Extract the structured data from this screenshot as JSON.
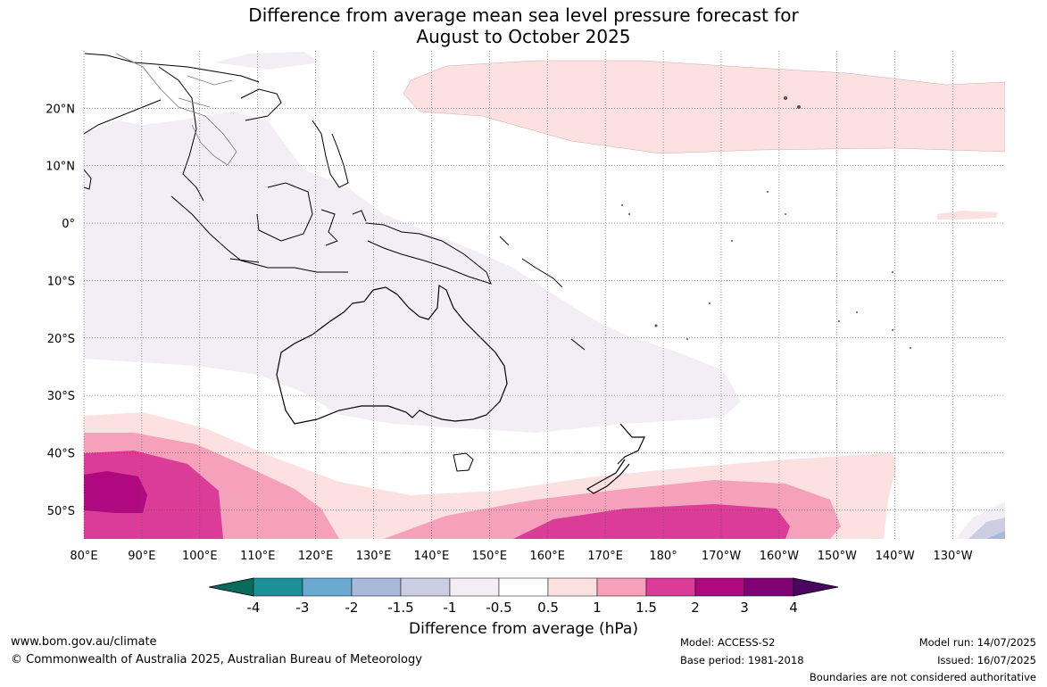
{
  "title_line1": "Difference from average mean sea level pressure forecast for",
  "title_line2": "August to October 2025",
  "lat_labels": [
    "20°N",
    "10°N",
    "0°",
    "10°S",
    "20°S",
    "30°S",
    "40°S",
    "50°S"
  ],
  "lat_values": [
    20,
    10,
    0,
    -10,
    -20,
    -30,
    -40,
    -50
  ],
  "lon_labels": [
    "80°E",
    "90°E",
    "100°E",
    "110°E",
    "120°E",
    "130°E",
    "140°E",
    "150°E",
    "160°E",
    "170°E",
    "180°",
    "170°W",
    "160°W",
    "150°W",
    "140°W",
    "130°W"
  ],
  "lon_values": [
    80,
    90,
    100,
    110,
    120,
    130,
    140,
    150,
    160,
    170,
    180,
    190,
    200,
    210,
    220,
    230
  ],
  "map_extent": {
    "lon_min": 80,
    "lon_max": 239,
    "lat_min": -55,
    "lat_max": 30
  },
  "colorbar": {
    "ticks": [
      "-4",
      "-3",
      "-2",
      "-1.5",
      "-1",
      "-0.5",
      "0.5",
      "1",
      "1.5",
      "2",
      "3",
      "4"
    ],
    "colors": [
      "#0b6b5b",
      "#1b9195",
      "#6aaad0",
      "#a8b9da",
      "#cbcde3",
      "#f3eef6",
      "#ffffff",
      "#fde0e0",
      "#f6a1bb",
      "#db3c97",
      "#b0087f",
      "#800275",
      "#4a0560"
    ],
    "label": "Difference from average (hPa)"
  },
  "footer": {
    "website": "www.bom.gov.au/climate",
    "copyright": "© Commonwealth of Australia 2025, Australian Bureau of Meteorology",
    "model": "Model: ACCESS-S2",
    "base_period": "Base period: 1981-2018",
    "model_run": "Model run: 14/07/2025",
    "issued": "Issued: 16/07/2025",
    "disclaimer": "Boundaries are not considered authoritative"
  }
}
